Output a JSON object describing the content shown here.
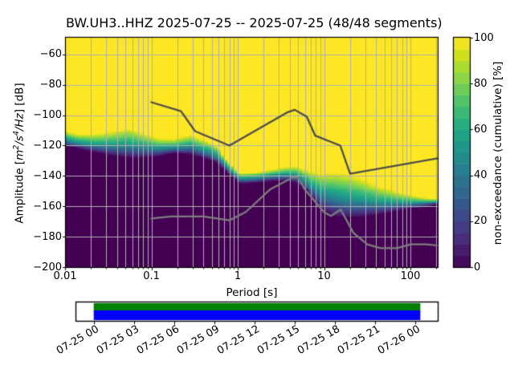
{
  "figure": {
    "background": "#ffffff",
    "kind": "ObsPy PPSD cumulative spectral plot"
  },
  "chart_data": {
    "type": "heatmap",
    "title": "BW.UH3..HHZ   2025-07-25 -- 2025-07-25  (48/48 segments)",
    "station": "BW.UH3..HHZ",
    "date_start": "2025-07-25",
    "date_end": "2025-07-25",
    "segments_used": 48,
    "segments_total": 48,
    "xlabel": "Period [s]",
    "ylabel": "Amplitude [m2/s4/Hz] [dB]",
    "ylabel_parts": {
      "pre": "Amplitude [",
      "m": "m",
      "m_exp": "2",
      "s": "/s",
      "s_exp": "4",
      "hz": "/Hz",
      "post": "] [dB]"
    },
    "colorbar_label": "non-exceedance (cumulative) [%]",
    "colormap": "viridis",
    "grid": true,
    "grid_color": "#b0b0b0",
    "x_axis": {
      "scale": "log",
      "range": [
        0.0102,
        207
      ],
      "tick_values": [
        0.01,
        0.1,
        1,
        10,
        100
      ],
      "tick_labels": [
        "0.01",
        "0.1",
        "1",
        "10",
        "100"
      ]
    },
    "y_axis": {
      "range": [
        -200,
        -49
      ],
      "tick_values": [
        -60,
        -80,
        -100,
        -120,
        -140,
        -160,
        -180,
        -200
      ],
      "tick_labels": [
        "−60",
        "−80",
        "−100",
        "−120",
        "−140",
        "−160",
        "−180",
        "−200"
      ]
    },
    "colorbar_axis": {
      "range": [
        0,
        100
      ],
      "steps": 20,
      "tick_values": [
        0,
        20,
        40,
        60,
        80,
        100
      ],
      "tick_labels": [
        "0",
        "20",
        "40",
        "60",
        "80",
        "100"
      ]
    },
    "histogram": {
      "db_bin_width": 1,
      "period_step_octaves": 0.125,
      "cumulative_quantum": 0.020833,
      "percentile_curves_note": "per period [s]: PSD dB at non-exceedance 100% (max), 50% (mid), 0% (min)",
      "percentile_curves": [
        {
          "p": 0.01,
          "max": -110.5,
          "mid": -116.0,
          "min": -120.5
        },
        {
          "p": 0.014,
          "max": -112.5,
          "mid": -118.0,
          "min": -122.0
        },
        {
          "p": 0.022,
          "max": -112.5,
          "mid": -119.5,
          "min": -124.5
        },
        {
          "p": 0.034,
          "max": -111.0,
          "mid": -120.0,
          "min": -126.5
        },
        {
          "p": 0.055,
          "max": -108.5,
          "mid": -120.0,
          "min": -128.0
        },
        {
          "p": 0.08,
          "max": -112.0,
          "mid": -121.0,
          "min": -128.0
        },
        {
          "p": 0.12,
          "max": -115.0,
          "mid": -122.0,
          "min": -127.0
        },
        {
          "p": 0.18,
          "max": -115.5,
          "mid": -121.5,
          "min": -125.0
        },
        {
          "p": 0.28,
          "max": -113.0,
          "mid": -120.5,
          "min": -126.0
        },
        {
          "p": 0.45,
          "max": -117.0,
          "mid": -124.0,
          "min": -129.0
        },
        {
          "p": 0.58,
          "max": -120.5,
          "mid": -127.0,
          "min": -132.0
        },
        {
          "p": 0.72,
          "max": -128.5,
          "mid": -133.0,
          "min": -136.5
        },
        {
          "p": 1.05,
          "max": -138.0,
          "mid": -142.0,
          "min": -145.0
        },
        {
          "p": 1.6,
          "max": -137.5,
          "mid": -141.5,
          "min": -144.5
        },
        {
          "p": 2.5,
          "max": -135.5,
          "mid": -140.0,
          "min": -143.5
        },
        {
          "p": 3.6,
          "max": -134.0,
          "mid": -139.0,
          "min": -143.5
        },
        {
          "p": 4.8,
          "max": -133.5,
          "mid": -139.5,
          "min": -144.5
        },
        {
          "p": 6.5,
          "max": -136.0,
          "mid": -145.0,
          "min": -150.5
        },
        {
          "p": 9.0,
          "max": -138.5,
          "mid": -151.0,
          "min": -162.0
        },
        {
          "p": 13.0,
          "max": -137.5,
          "mid": -153.0,
          "min": -167.0
        },
        {
          "p": 19.0,
          "max": -138.5,
          "mid": -155.5,
          "min": -168.0
        },
        {
          "p": 28.0,
          "max": -142.0,
          "mid": -156.5,
          "min": -167.0
        },
        {
          "p": 42.0,
          "max": -146.5,
          "mid": -158.0,
          "min": -165.5
        },
        {
          "p": 65.0,
          "max": -150.0,
          "mid": -158.0,
          "min": -163.5
        },
        {
          "p": 100.0,
          "max": -152.5,
          "mid": -158.0,
          "min": -161.5
        },
        {
          "p": 150.0,
          "max": -154.5,
          "mid": -157.5,
          "min": -160.5
        },
        {
          "p": 210.0,
          "max": -155.0,
          "mid": -157.0,
          "min": -159.0
        }
      ]
    },
    "noise_models": {
      "nhnm_color": "#4d4d4d",
      "nlnm_color": "#7d7d7d",
      "nhnm": [
        [
          0.1,
          -91.5
        ],
        [
          0.22,
          -97.4
        ],
        [
          0.32,
          -110.5
        ],
        [
          0.8,
          -120.0
        ],
        [
          3.8,
          -98.0
        ],
        [
          4.6,
          -96.5
        ],
        [
          6.3,
          -101.0
        ],
        [
          7.9,
          -113.5
        ],
        [
          15.4,
          -120.0
        ],
        [
          20.0,
          -138.5
        ],
        [
          210.0,
          -128.3
        ]
      ],
      "nlnm": [
        [
          0.1,
          -168.0
        ],
        [
          0.17,
          -166.7
        ],
        [
          0.4,
          -166.7
        ],
        [
          0.8,
          -169.2
        ],
        [
          1.24,
          -163.7
        ],
        [
          2.4,
          -148.6
        ],
        [
          4.3,
          -141.1
        ],
        [
          5.0,
          -141.1
        ],
        [
          6.0,
          -149.0
        ],
        [
          10.0,
          -163.8
        ],
        [
          12.0,
          -166.3
        ],
        [
          15.6,
          -162.1
        ],
        [
          21.9,
          -177.5
        ],
        [
          31.6,
          -185.0
        ],
        [
          45.0,
          -187.5
        ],
        [
          70.0,
          -187.5
        ],
        [
          101.0,
          -185.0
        ],
        [
          154.0,
          -185.0
        ],
        [
          210.0,
          -185.9
        ]
      ]
    }
  },
  "timeline": {
    "tick_labels": [
      "07-25 00",
      "07-25 03",
      "07-25 06",
      "07-25 09",
      "07-25 12",
      "07-25 15",
      "07-25 18",
      "07-25 21",
      "07-26 00"
    ],
    "tick_hours": [
      0,
      3,
      6,
      9,
      12,
      15,
      18,
      21,
      24
    ],
    "axis_hours": [
      -1.3,
      25.7
    ],
    "data_hours": [
      0,
      24.4
    ],
    "coverage_color_top": "#008000",
    "coverage_color_bottom": "#0000ff",
    "box_fill": "#ffffff",
    "box_border": "#000000"
  }
}
